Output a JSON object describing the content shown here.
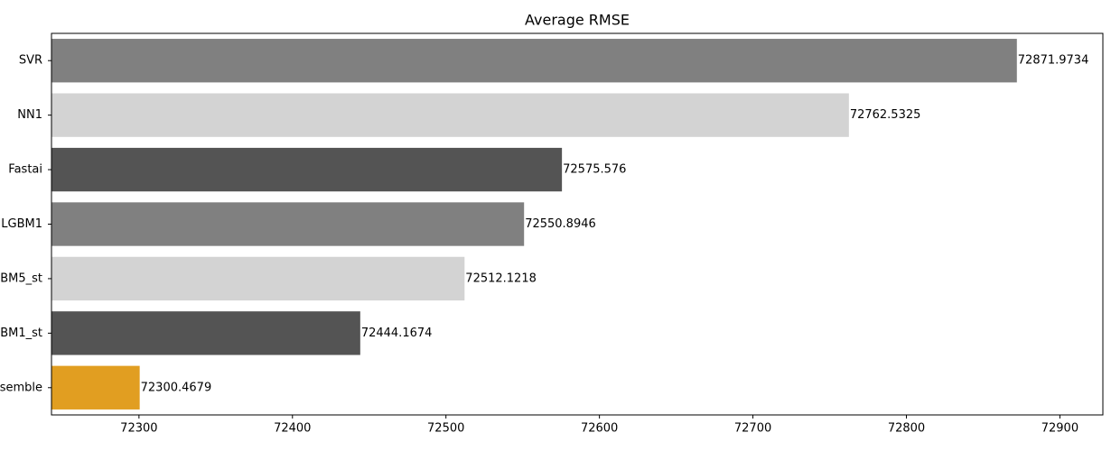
{
  "chart_data": {
    "type": "barh",
    "title": "Average RMSE",
    "categories": [
      "SVR",
      "NN1",
      "Fastai",
      "LGBM1",
      "BM5_st",
      "BM1_st",
      "semble"
    ],
    "values": [
      72871.9734,
      72762.5325,
      72575.576,
      72550.8946,
      72512.1218,
      72444.1674,
      72300.4679
    ],
    "colors": [
      "#808080",
      "#d3d3d3",
      "#545454",
      "#808080",
      "#d3d3d3",
      "#545454",
      "#e19e21"
    ],
    "xlim": [
      72243,
      72928
    ],
    "xticks": [
      72300,
      72400,
      72500,
      72600,
      72700,
      72800,
      72900
    ]
  }
}
